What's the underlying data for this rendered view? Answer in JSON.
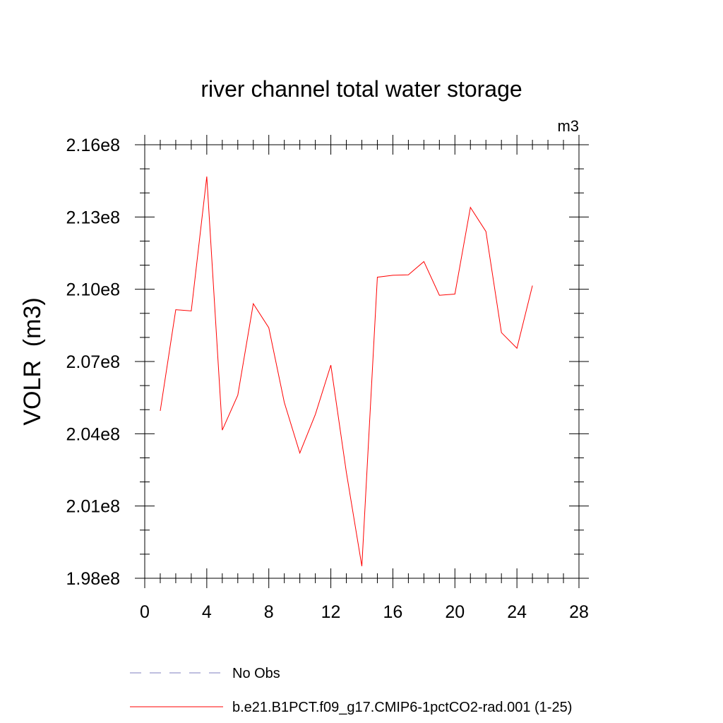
{
  "chart_data": {
    "type": "line",
    "title": "river channel total water storage",
    "units_label": "m3",
    "ylabel": "VOLR  (m3)",
    "xlabel": "",
    "xlim": [
      0,
      28
    ],
    "ylim": [
      198000000.0,
      216000000.0
    ],
    "x_ticks": [
      0,
      4,
      8,
      12,
      16,
      20,
      24,
      28
    ],
    "x_tick_labels": [
      "0",
      "4",
      "8",
      "12",
      "16",
      "20",
      "24",
      "28"
    ],
    "y_ticks": [
      198000000.0,
      201000000.0,
      204000000.0,
      207000000.0,
      210000000.0,
      213000000.0,
      216000000.0
    ],
    "y_tick_labels": [
      "1.98e8",
      "2.01e8",
      "2.04e8",
      "2.07e8",
      "2.10e8",
      "2.13e8",
      "2.16e8"
    ],
    "grid": false,
    "legend_position": "bottom",
    "series": [
      {
        "name": "b.e21.B1PCT.f09_g17.CMIP6-1pctCO2-rad.001 (1-25)",
        "color": "#ff0000",
        "dash": "solid",
        "x": [
          1,
          2,
          3,
          4,
          5,
          6,
          7,
          8,
          9,
          10,
          11,
          12,
          13,
          14,
          15,
          16,
          17,
          18,
          19,
          20,
          21,
          22,
          23,
          24,
          25
        ],
        "y": [
          204950000.0,
          209150000.0,
          209100000.0,
          214680000.0,
          204150000.0,
          205600000.0,
          209400000.0,
          208400000.0,
          205300000.0,
          203200000.0,
          204800000.0,
          206850000.0,
          202400000.0,
          198500000.0,
          210500000.0,
          210580000.0,
          210600000.0,
          211150000.0,
          209750000.0,
          209800000.0,
          213400000.0,
          212400000.0,
          208200000.0,
          207550000.0,
          210150000.0
        ]
      }
    ],
    "legend": [
      {
        "label": "No Obs",
        "color": "#7f7fbf",
        "dash": "dashed"
      },
      {
        "label": "b.e21.B1PCT.f09_g17.CMIP6-1pctCO2-rad.001 (1-25)",
        "color": "#ff0000",
        "dash": "solid"
      }
    ]
  }
}
